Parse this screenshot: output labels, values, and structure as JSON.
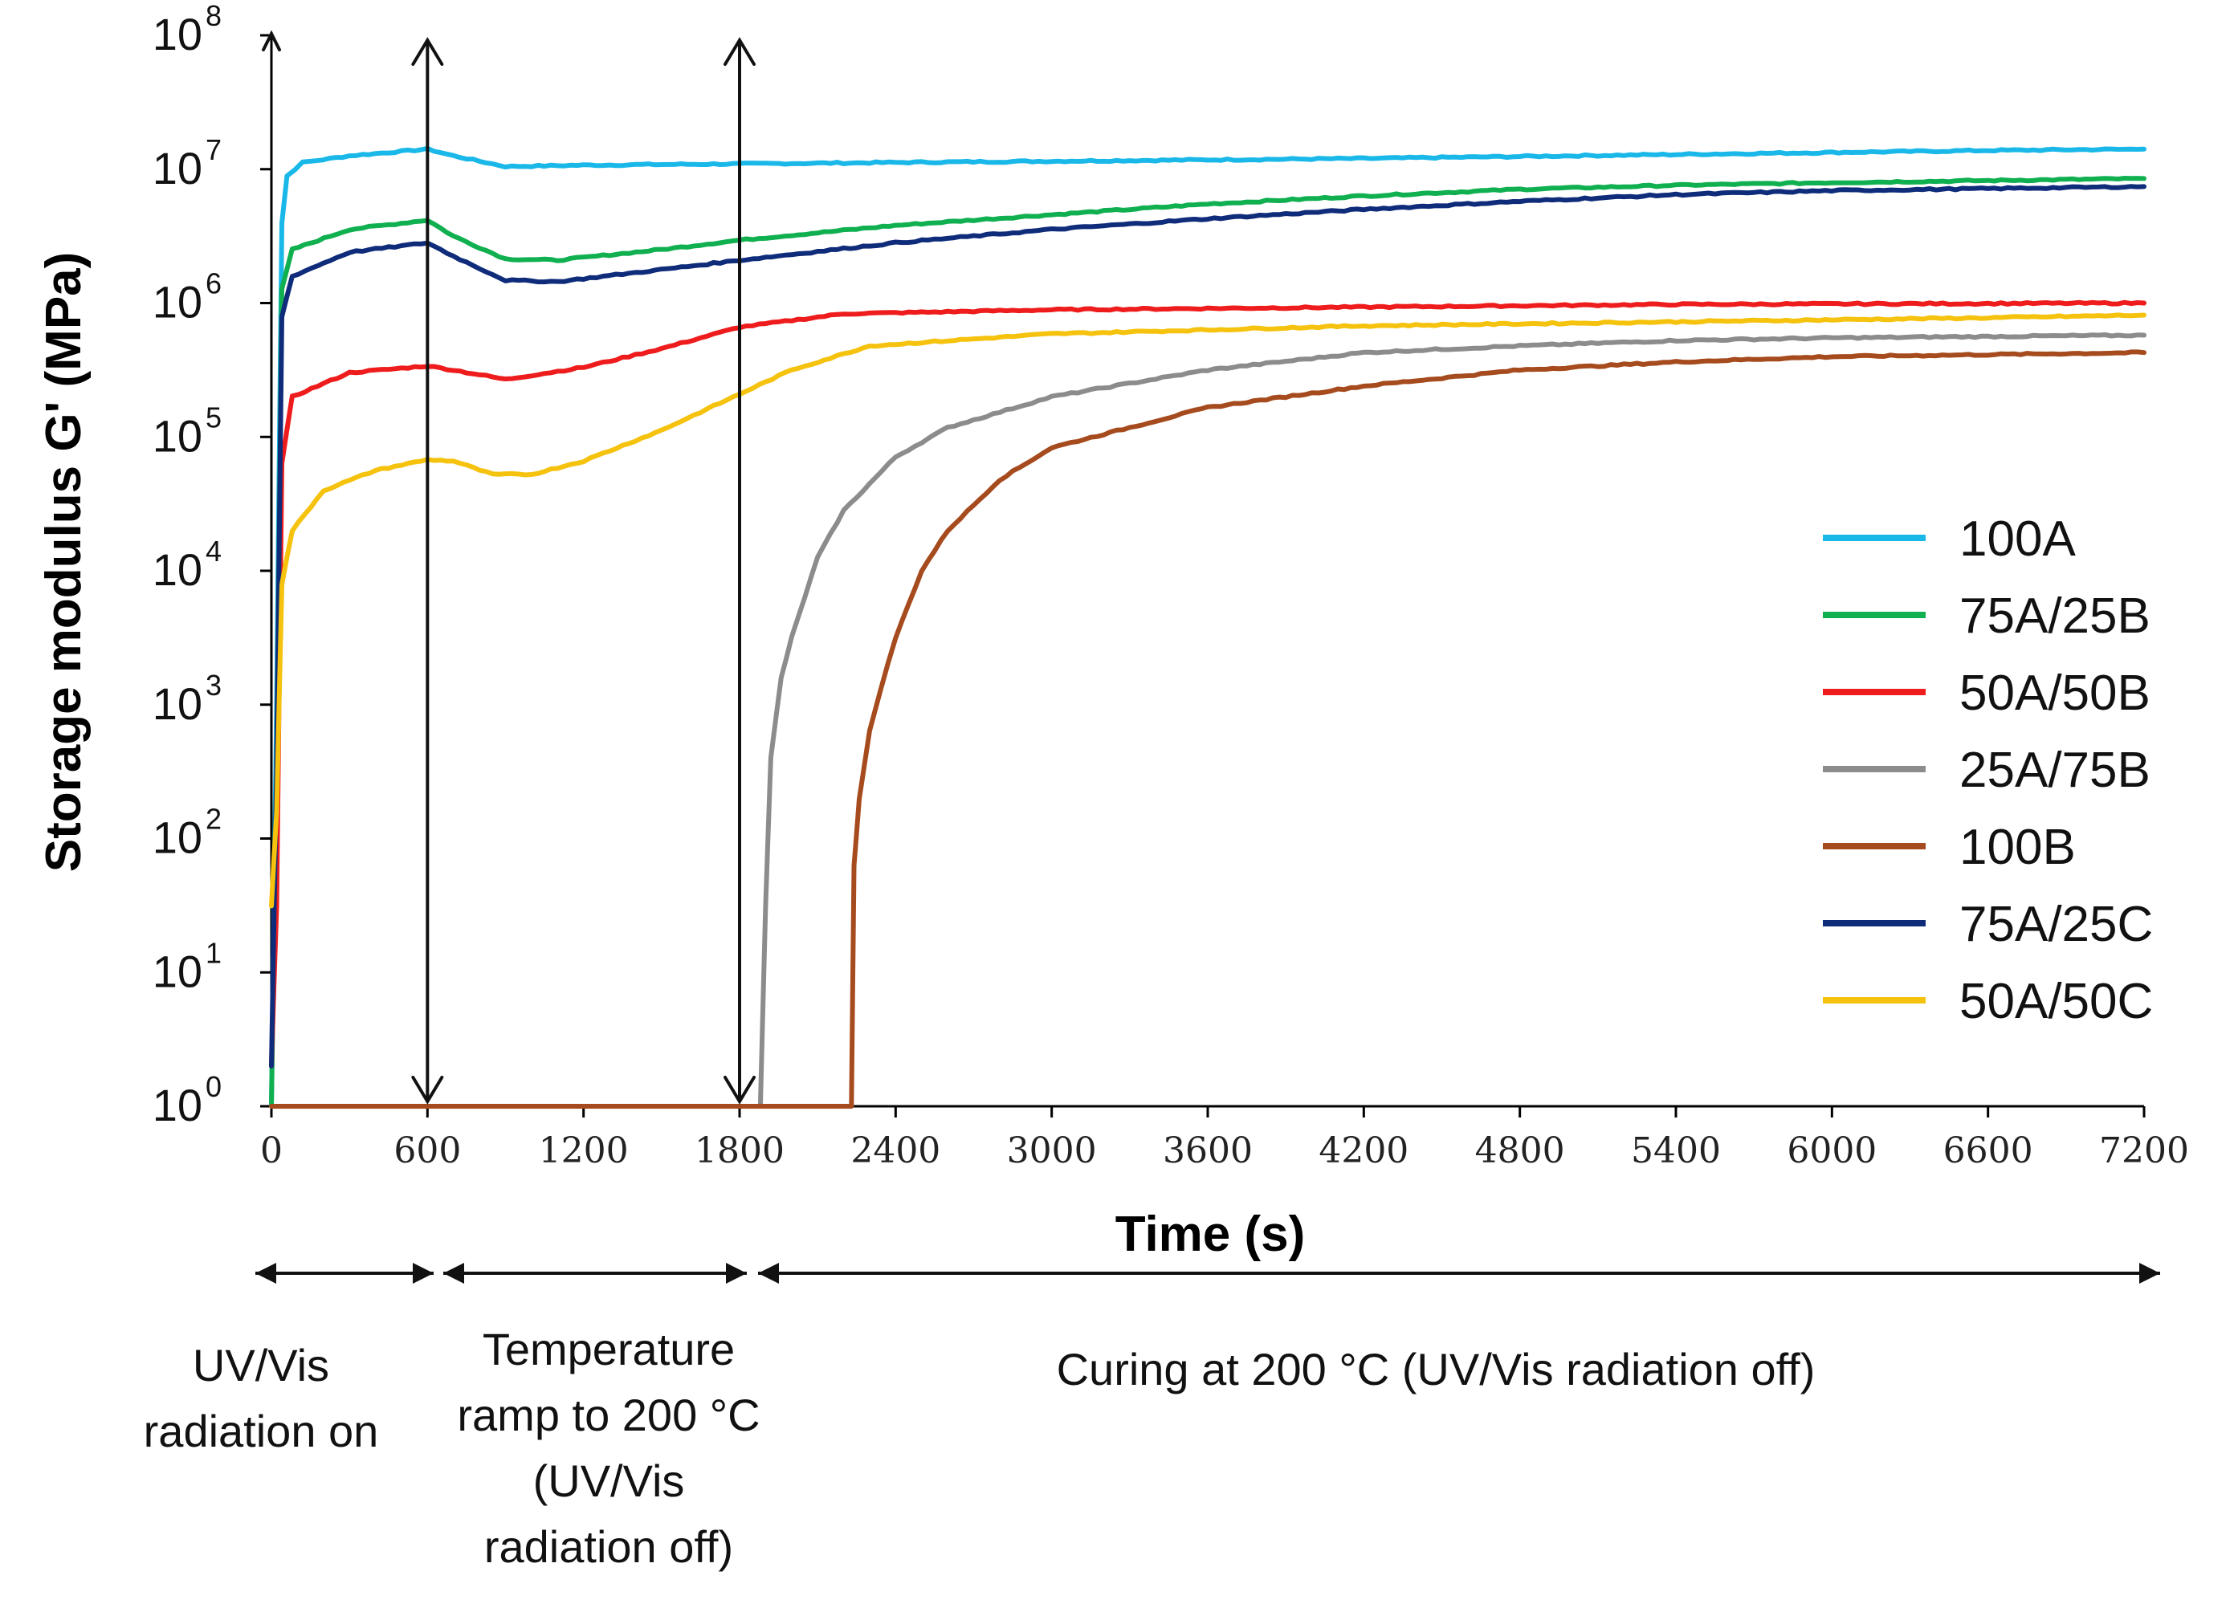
{
  "chart_data": {
    "type": "line",
    "title": "",
    "xlabel": "Time (s)",
    "ylabel": "Storage modulus G' (MPa)",
    "xlim": [
      0,
      7200
    ],
    "ylim_log10": [
      0,
      8
    ],
    "x_ticks": [
      0,
      600,
      1200,
      1800,
      2400,
      3000,
      3600,
      4200,
      4800,
      5400,
      6000,
      6600,
      7200
    ],
    "y_ticks": [
      {
        "base": "10",
        "exp": "0",
        "log": 0
      },
      {
        "base": "10",
        "exp": "1",
        "log": 1
      },
      {
        "base": "10",
        "exp": "2",
        "log": 2
      },
      {
        "base": "10",
        "exp": "3",
        "log": 3
      },
      {
        "base": "10",
        "exp": "4",
        "log": 4
      },
      {
        "base": "10",
        "exp": "5",
        "log": 5
      },
      {
        "base": "10",
        "exp": "6",
        "log": 6
      },
      {
        "base": "10",
        "exp": "7",
        "log": 7
      },
      {
        "base": "10",
        "exp": "8",
        "log": 8
      }
    ],
    "legend_position": "right",
    "series": [
      {
        "name": "100A",
        "color": "#1ab8e8",
        "points": [
          [
            0,
            0
          ],
          [
            20,
            3
          ],
          [
            40,
            6.6
          ],
          [
            60,
            6.95
          ],
          [
            120,
            7.05
          ],
          [
            300,
            7.1
          ],
          [
            600,
            7.15
          ],
          [
            700,
            7.1
          ],
          [
            900,
            7.02
          ],
          [
            1200,
            7.03
          ],
          [
            1800,
            7.04
          ],
          [
            3000,
            7.06
          ],
          [
            4200,
            7.08
          ],
          [
            5400,
            7.11
          ],
          [
            6600,
            7.14
          ],
          [
            7200,
            7.15
          ]
        ]
      },
      {
        "name": "75A/25B",
        "color": "#10b050",
        "points": [
          [
            0,
            0
          ],
          [
            20,
            2.5
          ],
          [
            40,
            6.1
          ],
          [
            80,
            6.4
          ],
          [
            300,
            6.55
          ],
          [
            600,
            6.62
          ],
          [
            700,
            6.5
          ],
          [
            900,
            6.33
          ],
          [
            1100,
            6.32
          ],
          [
            1500,
            6.4
          ],
          [
            1800,
            6.47
          ],
          [
            2400,
            6.58
          ],
          [
            3000,
            6.66
          ],
          [
            3600,
            6.74
          ],
          [
            4200,
            6.8
          ],
          [
            4800,
            6.85
          ],
          [
            5400,
            6.88
          ],
          [
            6000,
            6.9
          ],
          [
            7200,
            6.93
          ]
        ]
      },
      {
        "name": "50A/50B",
        "color": "#ee1c1c",
        "points": [
          [
            0,
            0.3
          ],
          [
            20,
            1.5
          ],
          [
            40,
            4.8
          ],
          [
            80,
            5.3
          ],
          [
            300,
            5.48
          ],
          [
            600,
            5.53
          ],
          [
            700,
            5.5
          ],
          [
            900,
            5.43
          ],
          [
            1200,
            5.52
          ],
          [
            1500,
            5.66
          ],
          [
            1800,
            5.82
          ],
          [
            2200,
            5.92
          ],
          [
            3000,
            5.95
          ],
          [
            4200,
            5.97
          ],
          [
            5400,
            5.99
          ],
          [
            7200,
            6.0
          ]
        ]
      },
      {
        "name": "25A/75B",
        "color": "#8c8c8c",
        "points": [
          [
            0,
            0
          ],
          [
            1880,
            0
          ],
          [
            1900,
            1.5
          ],
          [
            1920,
            2.6
          ],
          [
            1960,
            3.2
          ],
          [
            2000,
            3.5
          ],
          [
            2100,
            4.1
          ],
          [
            2200,
            4.45
          ],
          [
            2400,
            4.85
          ],
          [
            2600,
            5.07
          ],
          [
            3000,
            5.3
          ],
          [
            3600,
            5.5
          ],
          [
            4200,
            5.63
          ],
          [
            4800,
            5.68
          ],
          [
            5400,
            5.72
          ],
          [
            6000,
            5.74
          ],
          [
            7200,
            5.76
          ]
        ]
      },
      {
        "name": "100B",
        "color": "#a64b1e",
        "points": [
          [
            0,
            0
          ],
          [
            2230,
            0
          ],
          [
            2240,
            1.8
          ],
          [
            2260,
            2.3
          ],
          [
            2300,
            2.8
          ],
          [
            2340,
            3.1
          ],
          [
            2400,
            3.5
          ],
          [
            2500,
            4.0
          ],
          [
            2600,
            4.3
          ],
          [
            2800,
            4.68
          ],
          [
            3000,
            4.92
          ],
          [
            3600,
            5.22
          ],
          [
            4200,
            5.38
          ],
          [
            4800,
            5.5
          ],
          [
            5400,
            5.56
          ],
          [
            6000,
            5.6
          ],
          [
            7200,
            5.63
          ]
        ]
      },
      {
        "name": "75A/25C",
        "color": "#0e2c7a",
        "points": [
          [
            0,
            0.3
          ],
          [
            20,
            2.5
          ],
          [
            40,
            5.9
          ],
          [
            80,
            6.2
          ],
          [
            300,
            6.38
          ],
          [
            600,
            6.45
          ],
          [
            700,
            6.35
          ],
          [
            900,
            6.17
          ],
          [
            1100,
            6.16
          ],
          [
            1500,
            6.25
          ],
          [
            1800,
            6.32
          ],
          [
            2400,
            6.45
          ],
          [
            3000,
            6.55
          ],
          [
            3600,
            6.63
          ],
          [
            4200,
            6.7
          ],
          [
            4800,
            6.76
          ],
          [
            5400,
            6.81
          ],
          [
            6000,
            6.84
          ],
          [
            7200,
            6.87
          ]
        ]
      },
      {
        "name": "50A/50C",
        "color": "#f5c20e",
        "points": [
          [
            0,
            1.5
          ],
          [
            20,
            2.2
          ],
          [
            40,
            3.9
          ],
          [
            80,
            4.3
          ],
          [
            200,
            4.6
          ],
          [
            400,
            4.75
          ],
          [
            600,
            4.83
          ],
          [
            700,
            4.82
          ],
          [
            850,
            4.72
          ],
          [
            1000,
            4.72
          ],
          [
            1200,
            4.82
          ],
          [
            1500,
            5.05
          ],
          [
            1800,
            5.32
          ],
          [
            2000,
            5.5
          ],
          [
            2300,
            5.68
          ],
          [
            3000,
            5.77
          ],
          [
            4200,
            5.83
          ],
          [
            5400,
            5.86
          ],
          [
            6600,
            5.89
          ],
          [
            7200,
            5.91
          ]
        ]
      }
    ]
  },
  "phase_arrows": [
    600,
    1800
  ],
  "phases": [
    {
      "lines": [
        "UV/Vis",
        "radiation on"
      ]
    },
    {
      "lines": [
        "Temperature",
        "ramp to 200 °C",
        "(UV/Vis",
        "radiation off)"
      ]
    },
    {
      "lines": [
        "Curing at 200 °C (UV/Vis radiation off)"
      ]
    }
  ]
}
